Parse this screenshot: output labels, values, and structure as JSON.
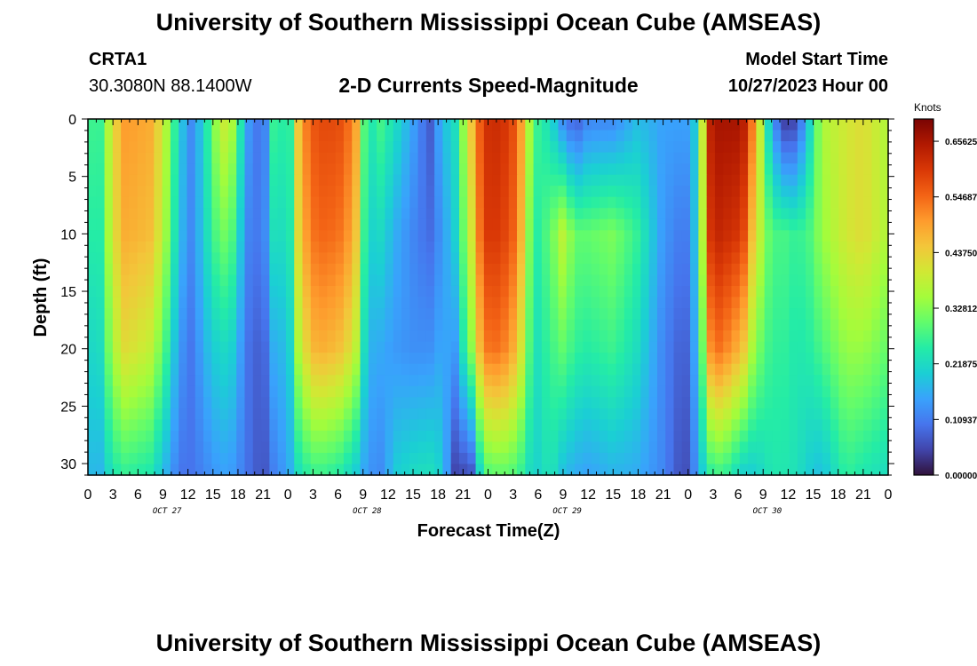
{
  "header": {
    "title": "University of Southern Mississippi Ocean Cube (AMSEAS)",
    "station": "CRTA1",
    "coordinates": "30.3080N  88.1400W",
    "chart_title": "2-D Currents Speed-Magnitude",
    "model_start_label": "Model Start Time",
    "model_start_value": "10/27/2023 Hour 00"
  },
  "footer": {
    "title": "University of Southern Mississippi Ocean Cube (AMSEAS)"
  },
  "chart_data": {
    "type": "heatmap",
    "title": "2-D Currents Speed-Magnitude",
    "xlabel": "Forecast Time(Z)",
    "ylabel": "Depth (ft)",
    "x_tick_labels": [
      "0",
      "3",
      "6",
      "9",
      "12",
      "15",
      "18",
      "21",
      "0",
      "3",
      "6",
      "9",
      "12",
      "15",
      "18",
      "21",
      "0",
      "3",
      "6",
      "9",
      "12",
      "15",
      "18",
      "21",
      "0",
      "3",
      "6",
      "9",
      "12",
      "15",
      "18",
      "21",
      "0"
    ],
    "day_labels": [
      "OCT 27",
      "OCT 28",
      "OCT 29",
      "OCT 30"
    ],
    "x_range_hours": [
      0,
      96
    ],
    "y_ticks": [
      0,
      5,
      10,
      15,
      20,
      25,
      30
    ],
    "y_range": [
      0,
      31
    ],
    "y_inverted": true,
    "colorbar": {
      "label": "Knots",
      "ticks": [
        "0.65625",
        "0.54687",
        "0.43750",
        "0.32812",
        "0.21875",
        "0.10937",
        "0.00000"
      ],
      "range": [
        0,
        0.7
      ],
      "colors": [
        "#30123b",
        "#4145ab",
        "#4675ed",
        "#39a2fc",
        "#1bcfd4",
        "#24eca6",
        "#61fc6c",
        "#a4fc3b",
        "#d1e834",
        "#f3c63a",
        "#fe9b2d",
        "#f36315",
        "#d93806",
        "#b11901",
        "#7a0403"
      ]
    },
    "time_anchor_hours": [
      0,
      1,
      3,
      4.5,
      6,
      7.5,
      9,
      11,
      12.5,
      14,
      16,
      17.5,
      19,
      21,
      22.5,
      24,
      25.5,
      27.5,
      30,
      32,
      33.5,
      35,
      37,
      39,
      41,
      42.5,
      44,
      46,
      47.5,
      49.5,
      51.5,
      53.5,
      55.5,
      57,
      58.5,
      60,
      63,
      66,
      69,
      71.5,
      72.5,
      73.5,
      74.5,
      75.5,
      76.5,
      78.5,
      80,
      82,
      83.5,
      85,
      86.5,
      88,
      91,
      93,
      96
    ],
    "speed_surface_knots": [
      0.32,
      0.22,
      0.42,
      0.5,
      0.49,
      0.48,
      0.4,
      0.2,
      0.12,
      0.22,
      0.4,
      0.35,
      0.15,
      0.08,
      0.3,
      0.21,
      0.5,
      0.58,
      0.58,
      0.52,
      0.22,
      0.28,
      0.22,
      0.15,
      0.07,
      0.18,
      0.22,
      0.45,
      0.61,
      0.62,
      0.56,
      0.28,
      0.22,
      0.12,
      0.07,
      0.12,
      0.12,
      0.18,
      0.15,
      0.15,
      0.15,
      0.32,
      0.63,
      0.66,
      0.66,
      0.66,
      0.5,
      0.15,
      0.04,
      0.05,
      0.2,
      0.36,
      0.4,
      0.42,
      0.36
    ],
    "speed_bottom_knots": [
      0.2,
      0.15,
      0.24,
      0.26,
      0.25,
      0.24,
      0.18,
      0.1,
      0.1,
      0.12,
      0.15,
      0.14,
      0.1,
      0.06,
      0.12,
      0.15,
      0.24,
      0.27,
      0.25,
      0.2,
      0.14,
      0.12,
      0.2,
      0.22,
      0.23,
      0.2,
      0.05,
      0.06,
      0.28,
      0.3,
      0.28,
      0.2,
      0.24,
      0.18,
      0.16,
      0.15,
      0.17,
      0.16,
      0.12,
      0.05,
      0.1,
      0.18,
      0.25,
      0.27,
      0.26,
      0.2,
      0.2,
      0.24,
      0.24,
      0.23,
      0.2,
      0.18,
      0.26,
      0.24,
      0.22
    ],
    "speed_mid_knots": [
      0.3,
      0.2,
      0.41,
      0.48,
      0.47,
      0.46,
      0.38,
      0.18,
      0.12,
      0.21,
      0.32,
      0.28,
      0.12,
      0.1,
      0.25,
      0.2,
      0.47,
      0.55,
      0.54,
      0.48,
      0.2,
      0.22,
      0.16,
      0.12,
      0.09,
      0.14,
      0.2,
      0.4,
      0.6,
      0.6,
      0.54,
      0.24,
      0.3,
      0.38,
      0.3,
      0.3,
      0.32,
      0.26,
      0.14,
      0.1,
      0.14,
      0.3,
      0.6,
      0.63,
      0.62,
      0.6,
      0.42,
      0.28,
      0.28,
      0.26,
      0.28,
      0.34,
      0.4,
      0.42,
      0.36
    ],
    "speed_deep_knots": [
      0.25,
      0.18,
      0.36,
      0.42,
      0.4,
      0.38,
      0.3,
      0.14,
      0.1,
      0.17,
      0.22,
      0.2,
      0.1,
      0.07,
      0.18,
      0.17,
      0.4,
      0.48,
      0.46,
      0.4,
      0.17,
      0.16,
      0.14,
      0.13,
      0.13,
      0.16,
      0.14,
      0.33,
      0.53,
      0.54,
      0.46,
      0.22,
      0.27,
      0.3,
      0.26,
      0.25,
      0.27,
      0.22,
      0.12,
      0.07,
      0.12,
      0.25,
      0.5,
      0.54,
      0.52,
      0.46,
      0.33,
      0.26,
      0.26,
      0.24,
      0.25,
      0.28,
      0.34,
      0.34,
      0.3
    ]
  }
}
